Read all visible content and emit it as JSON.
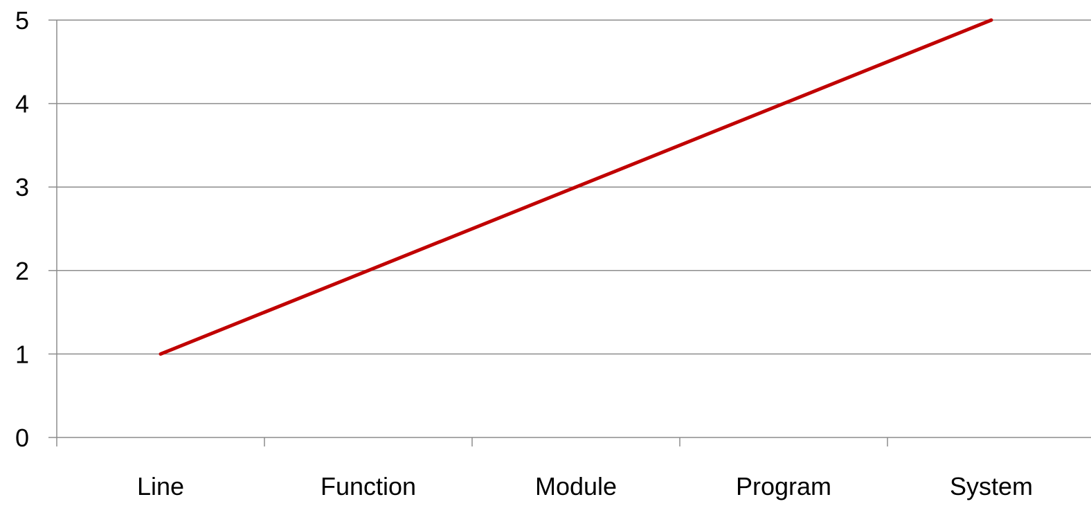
{
  "chart_data": {
    "type": "line",
    "categories": [
      "Line",
      "Function",
      "Module",
      "Program",
      "System"
    ],
    "series": [
      {
        "values": [
          1,
          2,
          3,
          4,
          5
        ],
        "color": "#c00000"
      }
    ],
    "y_ticks": [
      "0",
      "1",
      "2",
      "3",
      "4",
      "5"
    ],
    "ylim": [
      0,
      5
    ],
    "grid": true,
    "gridline_color": "#8c8c8c",
    "legend": "none"
  }
}
